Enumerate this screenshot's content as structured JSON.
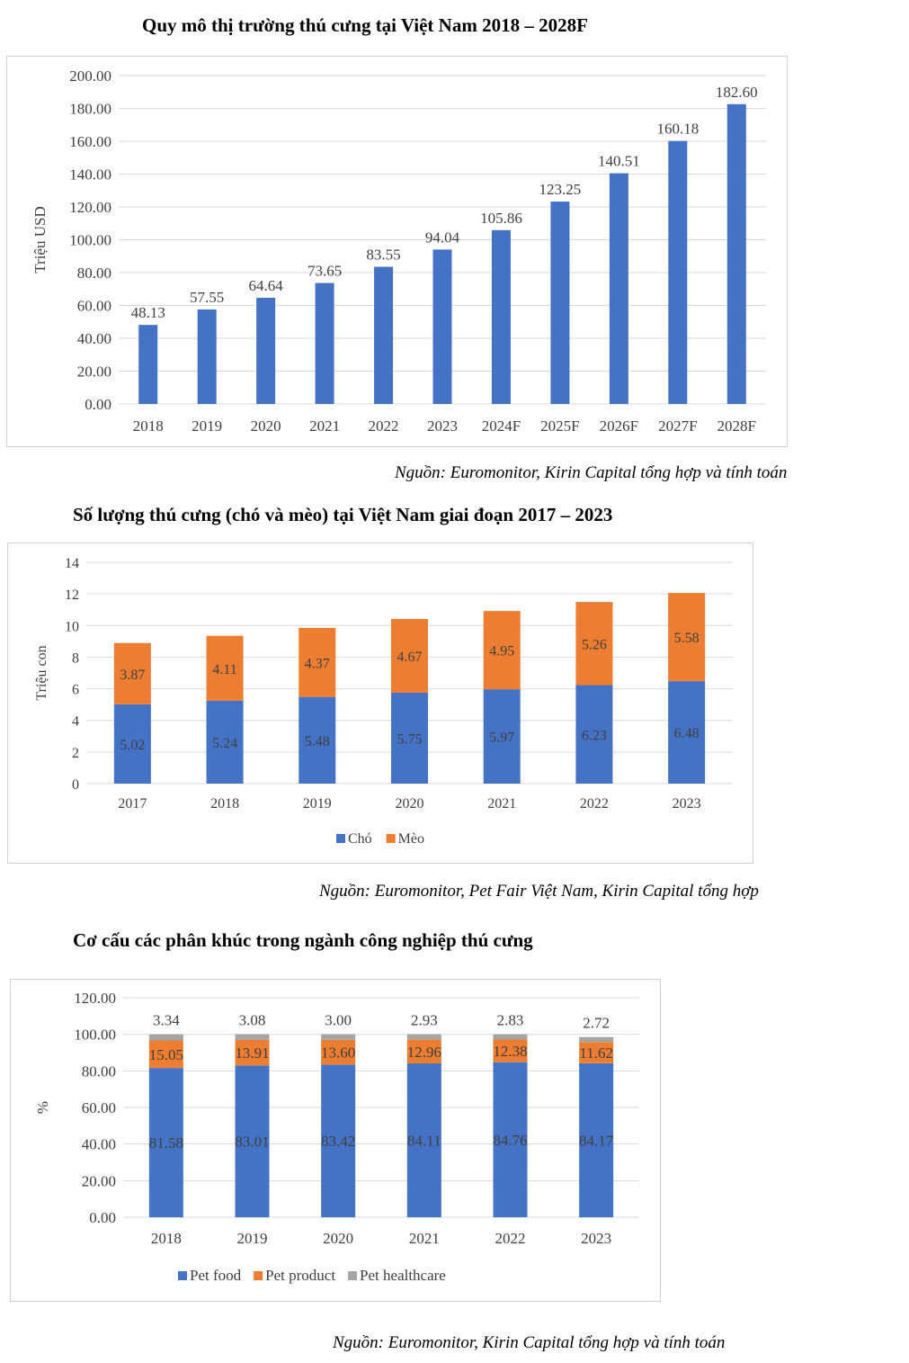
{
  "colors": {
    "blue": "#4472C4",
    "orange": "#ED7D31",
    "gray": "#A5A5A5",
    "grid": "#D9D9D9",
    "text": "#404040"
  },
  "chart_data": [
    {
      "type": "bar",
      "title": "Quy mô thị trường thú cưng tại Việt Nam 2018 – 2028F",
      "ylabel": "Triệu USD",
      "xlabel": "",
      "categories": [
        "2018",
        "2019",
        "2020",
        "2021",
        "2022",
        "2023",
        "2024F",
        "2025F",
        "2026F",
        "2027F",
        "2028F"
      ],
      "values": [
        48.13,
        57.55,
        64.64,
        73.65,
        83.55,
        94.04,
        105.86,
        123.25,
        140.51,
        160.18,
        182.6
      ],
      "ylim": [
        0,
        200
      ],
      "yticks": [
        "0.00",
        "20.00",
        "40.00",
        "60.00",
        "80.00",
        "100.00",
        "120.00",
        "140.00",
        "160.00",
        "180.00",
        "200.00"
      ],
      "grid": true,
      "legend": "none",
      "source": "Nguồn: Euromonitor, Kirin Capital tổng hợp và tính toán"
    },
    {
      "type": "bar",
      "stacked": true,
      "title": "Số lượng thú cưng (chó và mèo) tại Việt Nam giai đoạn 2017 – 2023",
      "ylabel": "Triệu con",
      "xlabel": "",
      "categories": [
        "2017",
        "2018",
        "2019",
        "2020",
        "2021",
        "2022",
        "2023"
      ],
      "series": [
        {
          "name": "Chó",
          "values": [
            5.02,
            5.24,
            5.48,
            5.75,
            5.97,
            6.23,
            6.48
          ]
        },
        {
          "name": "Mèo",
          "values": [
            3.87,
            4.11,
            4.37,
            4.67,
            4.95,
            5.26,
            5.58
          ]
        }
      ],
      "ylim": [
        0,
        14
      ],
      "yticks": [
        "0",
        "2",
        "4",
        "6",
        "8",
        "10",
        "12",
        "14"
      ],
      "grid": true,
      "legend": "bottom",
      "source": "Nguồn: Euromonitor, Pet Fair Việt Nam,  Kirin Capital tổng hợp"
    },
    {
      "type": "bar",
      "stacked": true,
      "title": "Cơ cấu các phân khúc trong ngành công nghiệp thú cưng",
      "ylabel": "%",
      "xlabel": "",
      "categories": [
        "2018",
        "2019",
        "2020",
        "2021",
        "2022",
        "2023"
      ],
      "series": [
        {
          "name": "Pet food",
          "values": [
            81.58,
            83.01,
            83.42,
            84.11,
            84.76,
            84.17
          ]
        },
        {
          "name": "Pet product",
          "values": [
            15.05,
            13.91,
            13.6,
            12.96,
            12.38,
            11.62
          ]
        },
        {
          "name": "Pet healthcare",
          "values": [
            3.34,
            3.08,
            3.0,
            2.93,
            2.83,
            2.72
          ]
        }
      ],
      "ylim": [
        0,
        120
      ],
      "yticks": [
        "0.00",
        "20.00",
        "40.00",
        "60.00",
        "80.00",
        "100.00",
        "120.00"
      ],
      "grid": true,
      "legend": "bottom",
      "source": "Nguồn: Euromonitor, Kirin Capital tổng hợp và tính toán"
    }
  ]
}
